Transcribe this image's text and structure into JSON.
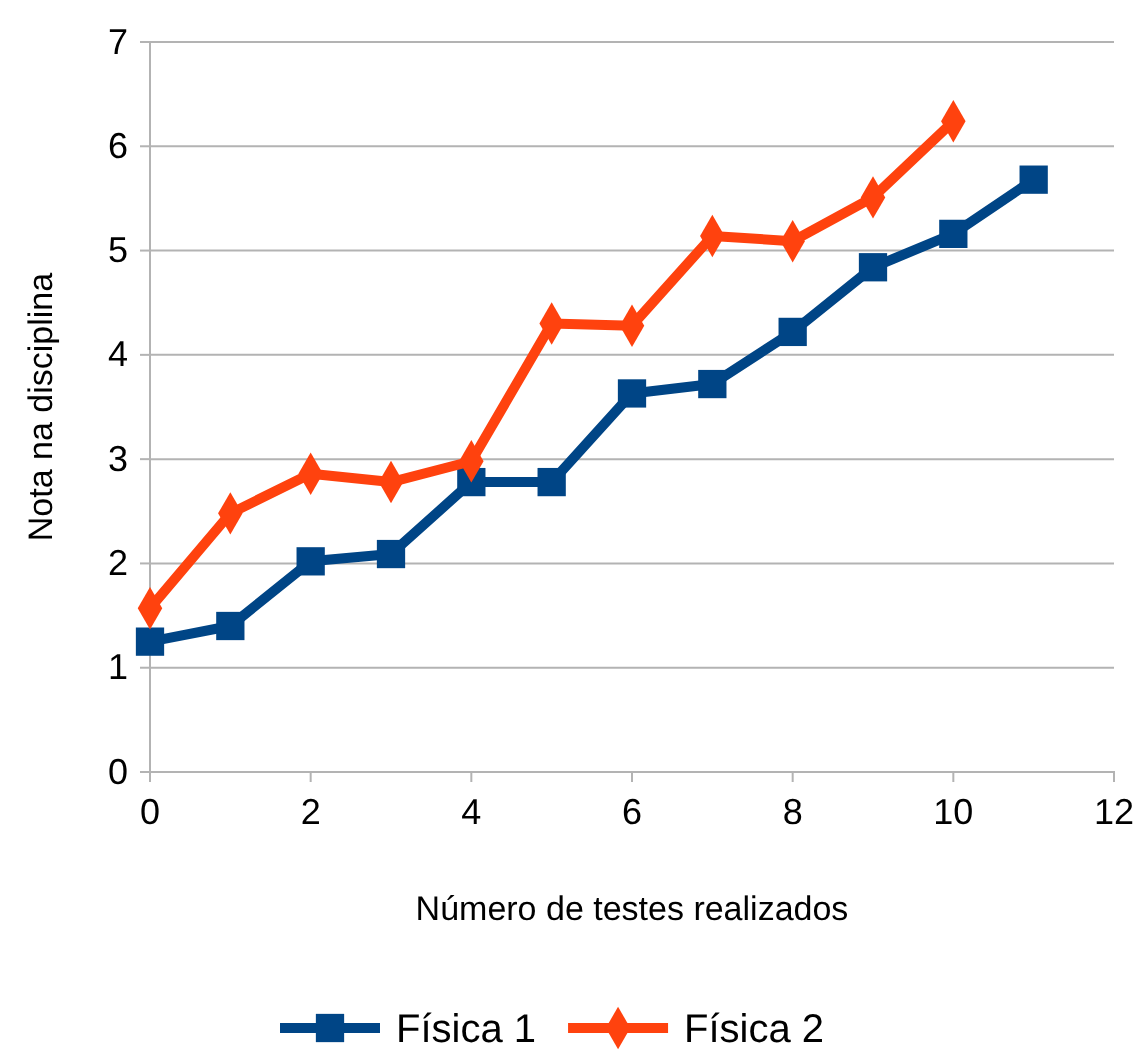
{
  "chart_data": {
    "type": "line",
    "xlabel": "Número de testes realizados",
    "ylabel": "Nota na disciplina",
    "xlim": [
      0,
      12
    ],
    "xticks": [
      0,
      2,
      4,
      6,
      8,
      10,
      12
    ],
    "ylim": [
      0,
      7
    ],
    "yticks": [
      0,
      1,
      2,
      3,
      4,
      5,
      6,
      7
    ],
    "grid": "y",
    "legend": "bottom",
    "line_style": "solid",
    "series": [
      {
        "name": "Física 1",
        "color": "#004586",
        "marker": "square",
        "x": [
          0,
          1,
          2,
          3,
          4,
          5,
          6,
          7,
          8,
          9,
          10,
          11
        ],
        "values": [
          1.25,
          1.4,
          2.02,
          2.09,
          2.78,
          2.78,
          3.63,
          3.72,
          4.22,
          4.84,
          5.16,
          5.68
        ]
      },
      {
        "name": "Física 2",
        "color": "#ff420e",
        "marker": "diamond",
        "x": [
          0,
          1,
          2,
          3,
          4,
          5,
          6,
          7,
          8,
          9,
          10
        ],
        "values": [
          1.57,
          2.48,
          2.86,
          2.78,
          2.98,
          4.3,
          4.28,
          5.14,
          5.09,
          5.51,
          6.24
        ]
      }
    ]
  }
}
